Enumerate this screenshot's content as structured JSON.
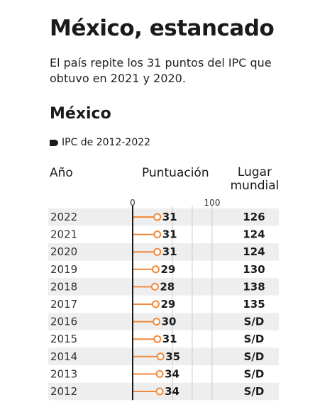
{
  "header": {
    "title": "México, estancado",
    "subtitle": "El país repite los 31 puntos del IPC que obtuvo en 2021 y 2020.",
    "country": "México",
    "legend_label": "IPC de 2012-2022"
  },
  "columns": {
    "year": "Año",
    "score": "Puntuación",
    "rank_line1": "Lugar",
    "rank_line2": "mundial"
  },
  "colors": {
    "accent": "#f08a3c",
    "axis": "#1a1a1a",
    "stripe": "#eeeeee",
    "grid": "#cccccc"
  },
  "chart_data": {
    "type": "lollipop",
    "xlim": [
      0,
      100
    ],
    "x_ticks": [
      "0",
      "100"
    ],
    "rows": [
      {
        "year": "2022",
        "score": 31,
        "rank": "126"
      },
      {
        "year": "2021",
        "score": 31,
        "rank": "124"
      },
      {
        "year": "2020",
        "score": 31,
        "rank": "124"
      },
      {
        "year": "2019",
        "score": 29,
        "rank": "130"
      },
      {
        "year": "2018",
        "score": 28,
        "rank": "138"
      },
      {
        "year": "2017",
        "score": 29,
        "rank": "135"
      },
      {
        "year": "2016",
        "score": 30,
        "rank": "S/D"
      },
      {
        "year": "2015",
        "score": 31,
        "rank": "S/D"
      },
      {
        "year": "2014",
        "score": 35,
        "rank": "S/D"
      },
      {
        "year": "2013",
        "score": 34,
        "rank": "S/D"
      },
      {
        "year": "2012",
        "score": 34,
        "rank": "S/D"
      }
    ]
  }
}
